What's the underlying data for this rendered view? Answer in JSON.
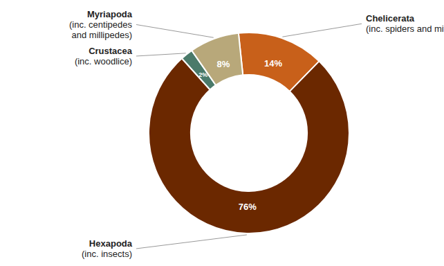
{
  "chart_data": {
    "type": "donut",
    "categories": [
      "Chelicerata\n(inc. spiders and mites)",
      "Hexapoda\n(inc. insects)",
      "Crustacea\n(inc. woodlice)",
      "Myriapoda\n(inc. centipedes\nand millipedes)"
    ],
    "values": [
      14,
      76,
      2,
      8
    ],
    "value_labels": [
      "14%",
      "76%",
      "2%",
      "8%"
    ],
    "colors": [
      "#C8601A",
      "#6B2800",
      "#4A7A6A",
      "#B8A87A"
    ],
    "data_labels": true
  }
}
